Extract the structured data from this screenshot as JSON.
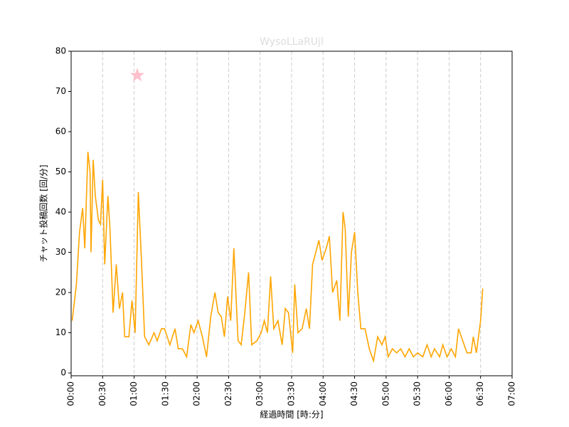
{
  "chart_data": {
    "type": "line",
    "title": "WysoLLaRUjl",
    "xlabel": "経過時間 [時:分]",
    "ylabel": "チャット投稿回数 [回/分]",
    "x": [
      1,
      5,
      8,
      11,
      13,
      16,
      18,
      19,
      21,
      23,
      26,
      28,
      30,
      32,
      35,
      37,
      40,
      43,
      46,
      49,
      51,
      55,
      58,
      61,
      64,
      67,
      70,
      74,
      79,
      82,
      86,
      89,
      94,
      99,
      102,
      106,
      110,
      114,
      117,
      121,
      125,
      129,
      133,
      137,
      140,
      143,
      146,
      149,
      152,
      155,
      159,
      162,
      165,
      169,
      172,
      177,
      181,
      184,
      187,
      190,
      193,
      197,
      201,
      204,
      207,
      211,
      213,
      216,
      220,
      224,
      227,
      230,
      233,
      236,
      239,
      243,
      246,
      249,
      253,
      256,
      259,
      261,
      264,
      267,
      270,
      273,
      276,
      280,
      284,
      288,
      292,
      296,
      299,
      302,
      306,
      310,
      314,
      318,
      322,
      326,
      330,
      335,
      339,
      343,
      346,
      351,
      354,
      358,
      362,
      366,
      369,
      373,
      377,
      381,
      383,
      386,
      390,
      392
    ],
    "series": [
      {
        "name": "チャット投稿回数",
        "color": "orange",
        "values": [
          13,
          22,
          35,
          41,
          31,
          55,
          50,
          30,
          53,
          44,
          38,
          37,
          48,
          27,
          44,
          36,
          15,
          27,
          16,
          20,
          9,
          9,
          18,
          10,
          45,
          28,
          9,
          7,
          10,
          8,
          11,
          11,
          7,
          11,
          6,
          6,
          4,
          12,
          10,
          13,
          9,
          4,
          14,
          20,
          15,
          14,
          9,
          19,
          13,
          31,
          8,
          7,
          14,
          25,
          7,
          8,
          10,
          13,
          10,
          24,
          11,
          13,
          7,
          16,
          15,
          5,
          22,
          10,
          11,
          16,
          11,
          27,
          30,
          33,
          28,
          31,
          34,
          20,
          23,
          13,
          40,
          36,
          14,
          30,
          35,
          20,
          11,
          11,
          6,
          3,
          9,
          7,
          9,
          4,
          6,
          5,
          6,
          4,
          6,
          4,
          5,
          4,
          7,
          4,
          6,
          4,
          7,
          4,
          6,
          4,
          11,
          8,
          5,
          5,
          9,
          5,
          13,
          21
        ]
      }
    ],
    "highlight": {
      "x": 63,
      "y": 74,
      "color": "pink"
    },
    "xlim": [
      0,
      420
    ],
    "ylim": [
      -0.7,
      80
    ],
    "xticks": [
      {
        "value": 0,
        "label": "00:00"
      },
      {
        "value": 30,
        "label": "00:30"
      },
      {
        "value": 60,
        "label": "01:00"
      },
      {
        "value": 90,
        "label": "01:30"
      },
      {
        "value": 120,
        "label": "02:00"
      },
      {
        "value": 150,
        "label": "02:30"
      },
      {
        "value": 180,
        "label": "03:00"
      },
      {
        "value": 210,
        "label": "03:30"
      },
      {
        "value": 240,
        "label": "04:00"
      },
      {
        "value": 270,
        "label": "04:30"
      },
      {
        "value": 300,
        "label": "05:00"
      },
      {
        "value": 330,
        "label": "05:30"
      },
      {
        "value": 360,
        "label": "06:00"
      },
      {
        "value": 390,
        "label": "06:30"
      },
      {
        "value": 420,
        "label": "07:00"
      }
    ],
    "yticks": [
      0,
      10,
      20,
      30,
      40,
      50,
      60,
      70,
      80
    ],
    "grid": "x"
  }
}
